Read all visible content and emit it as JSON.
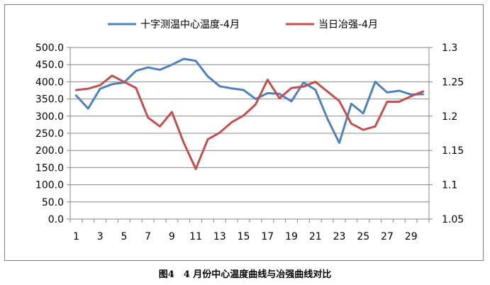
{
  "caption": "图4　4 月份中心温度曲线与冶强曲线对比",
  "chart_data": {
    "type": "line",
    "x": [
      1,
      2,
      3,
      4,
      5,
      6,
      7,
      8,
      9,
      10,
      11,
      12,
      13,
      14,
      15,
      16,
      17,
      18,
      19,
      20,
      21,
      22,
      23,
      24,
      25,
      26,
      27,
      28,
      29,
      30
    ],
    "x_tick_labels": [
      "1",
      "3",
      "5",
      "7",
      "9",
      "11",
      "13",
      "15",
      "17",
      "19",
      "21",
      "23",
      "25",
      "27",
      "29"
    ],
    "y_left": {
      "ylim": [
        0,
        500
      ],
      "ticks": [
        "0.0",
        "50.0",
        "100.0",
        "150.0",
        "200.0",
        "250.0",
        "300.0",
        "350.0",
        "400.0",
        "450.0",
        "500.0"
      ]
    },
    "y_right": {
      "ylim": [
        1.05,
        1.3
      ],
      "ticks": [
        "1.05",
        "1.1",
        "1.15",
        "1.2",
        "1.25",
        "1.3"
      ]
    },
    "legend": {
      "placement": "top"
    },
    "grid": "horizontal",
    "series": [
      {
        "name": "十字测温中心温度-4月",
        "axis": "left",
        "color": "#4f81bd",
        "values": [
          360,
          322,
          380,
          393,
          398,
          432,
          442,
          435,
          450,
          467,
          461,
          416,
          387,
          381,
          376,
          350,
          367,
          365,
          343,
          398,
          377,
          293,
          222,
          336,
          308,
          400,
          369,
          374,
          363,
          364
        ]
      },
      {
        "name": "当日冶强-4月",
        "axis": "right",
        "color": "#c0504d",
        "values": [
          1.238,
          1.24,
          1.245,
          1.259,
          1.25,
          1.241,
          1.198,
          1.185,
          1.206,
          1.161,
          1.123,
          1.166,
          1.176,
          1.191,
          1.201,
          1.217,
          1.253,
          1.226,
          1.241,
          1.243,
          1.25,
          1.236,
          1.222,
          1.189,
          1.18,
          1.185,
          1.221,
          1.221,
          1.229,
          1.236
        ]
      }
    ]
  }
}
